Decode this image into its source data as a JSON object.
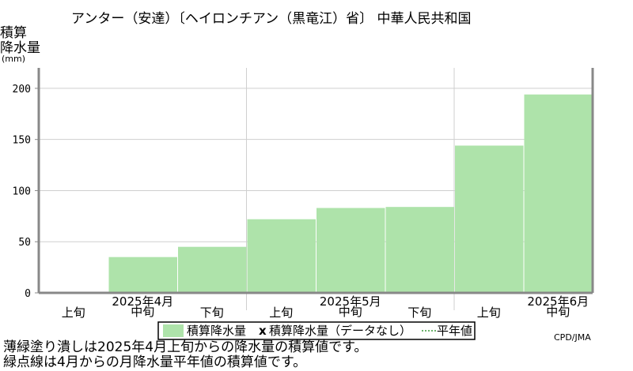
{
  "chart_data": {
    "type": "area",
    "title": "アンター（安達）〔ヘイロンチアン（黒竜江）省〕 中華人民共和国",
    "ylabel_line1": "積算",
    "ylabel_line2": "降水量",
    "yunit": "(mm)",
    "ylim": [
      0,
      220
    ],
    "yticks": [
      0,
      50,
      100,
      150,
      200
    ],
    "grid": true,
    "periods": [
      "2025年4月上旬",
      "2025年4月中旬",
      "2025年4月下旬",
      "2025年5月上旬",
      "2025年5月中旬",
      "2025年5月下旬",
      "2025年6月上旬",
      "2025年6月中旬"
    ],
    "period_labels": [
      "上旬",
      "中旬",
      "下旬",
      "上旬",
      "中旬",
      "下旬",
      "上旬",
      "中旬"
    ],
    "month_labels": [
      "2025年4月",
      "2025年5月",
      "2025年6月"
    ],
    "series": [
      {
        "name": "積算降水量",
        "color": "#aee3aa",
        "values": [
          1,
          35,
          45,
          72,
          83,
          84,
          144,
          194
        ]
      }
    ],
    "legend": {
      "position": "bottom",
      "item1": "積算降水量",
      "item2_marker": "x",
      "item2": "積算降水量（データなし）",
      "item3": "平年値"
    }
  },
  "credit": "CPD/JMA",
  "notes": {
    "line1": "薄緑塗り潰しは2025年4月上旬からの降水量の積算値です。",
    "line2": "緑点線は4月からの月降水量平年値の積算値です。"
  }
}
